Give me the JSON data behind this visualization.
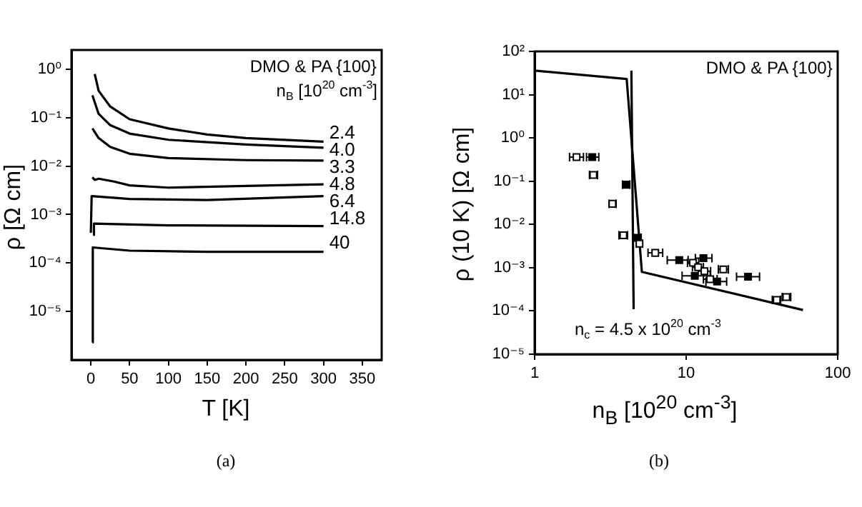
{
  "chart_data": [
    {
      "type": "line",
      "xlabel": "T [K]",
      "ylabel": "ρ [Ω cm]",
      "legend_title": "n$_{B}$ [10$^{20}$ cm$^{-3}$]",
      "annotations": [
        "DMO & PA {100}",
        "(a)"
      ],
      "log": "y",
      "xlim": [
        -25,
        375
      ],
      "xticks": [
        0,
        50,
        100,
        150,
        200,
        250,
        300,
        350
      ],
      "ylim": [
        1e-06,
        2.5
      ],
      "yticks": [
        {
          "value": 1,
          "label": "10⁰"
        },
        {
          "value": 0.1,
          "label": "10⁻¹"
        },
        {
          "value": 0.01,
          "label": "10⁻²"
        },
        {
          "value": 0.001,
          "label": "10⁻³"
        },
        {
          "value": 0.0001,
          "label": "10⁻⁴"
        },
        {
          "value": 1e-05,
          "label": "10⁻⁵"
        }
      ],
      "series": [
        {
          "name": "2.4",
          "color": "#000000",
          "x": [
            5,
            10,
            25,
            50,
            100,
            150,
            200,
            300
          ],
          "values": [
            0.8,
            0.36,
            0.17,
            0.093,
            0.06,
            0.045,
            0.038,
            0.032
          ]
        },
        {
          "name": "4.0",
          "color": "#000000",
          "x": [
            2,
            10,
            25,
            50,
            100,
            200,
            300
          ],
          "values": [
            0.29,
            0.12,
            0.07,
            0.047,
            0.035,
            0.028,
            0.024
          ]
        },
        {
          "name": "3.3",
          "color": "#000000",
          "x": [
            2,
            10,
            25,
            50,
            100,
            200,
            300
          ],
          "values": [
            0.06,
            0.038,
            0.025,
            0.018,
            0.0147,
            0.0133,
            0.013
          ]
        },
        {
          "name": "4.8",
          "color": "#000000",
          "x": [
            2,
            5,
            10,
            30,
            50,
            100,
            200,
            300
          ],
          "values": [
            0.0059,
            0.0052,
            0.0055,
            0.0048,
            0.004,
            0.0036,
            0.0039,
            0.0042
          ]
        },
        {
          "name": "6.4",
          "color": "#000000",
          "x": [
            0,
            1,
            50,
            150,
            300
          ],
          "values": [
            0.00042,
            0.0024,
            0.0021,
            0.002,
            0.0024
          ]
        },
        {
          "name": "14.8",
          "color": "#000000",
          "x": [
            3,
            4,
            100,
            300
          ],
          "values": [
            0.00038,
            0.00065,
            0.0006,
            0.00058
          ]
        },
        {
          "name": "40",
          "color": "#000000",
          "x": [
            2,
            2.5,
            50,
            150,
            300
          ],
          "values": [
            2.3e-06,
            0.00021,
            0.00018,
            0.00017,
            0.00017
          ]
        }
      ]
    },
    {
      "type": "scatter",
      "xlabel": "n$_{B}$ [10$^{20}$ cm$^{-3}$]",
      "ylabel": "ρ (10 K) [Ω cm]",
      "annotations": [
        "DMO & PA {100}",
        "n$_{c}$ = 4.5 x 10$^{20}$ cm$^{-3}$",
        "(b)"
      ],
      "log": "xy",
      "xlim": [
        1,
        100
      ],
      "xticks": [
        1,
        10,
        100
      ],
      "ylim": [
        1e-05,
        100
      ],
      "yticks": [
        {
          "value": 100,
          "label": "10²"
        },
        {
          "value": 10,
          "label": "10¹"
        },
        {
          "value": 1,
          "label": "10⁰"
        },
        {
          "value": 0.1,
          "label": "10⁻¹"
        },
        {
          "value": 0.01,
          "label": "10⁻²"
        },
        {
          "value": 0.001,
          "label": "10⁻³"
        },
        {
          "value": 0.0001,
          "label": "10⁻⁴"
        },
        {
          "value": 1e-05,
          "label": "10⁻⁵"
        }
      ],
      "series": [
        {
          "marker": "square",
          "color": "#ffffff",
          "x": [
            1.89,
            2.44,
            3.26,
            3.85,
            4.92,
            6.25,
            11.1,
            12.0,
            13.2,
            14.4,
            17.6,
            39.6,
            45.8
          ],
          "values": [
            0.36,
            0.139,
            0.03,
            0.0056,
            0.0036,
            0.0022,
            0.0013,
            0.00102,
            0.00083,
            0.00054,
            0.00091,
            0.00018,
            0.00021
          ],
          "xerrors": [
            [
              1.7,
              2.1
            ],
            [
              2.3,
              2.6
            ],
            [
              3.1,
              3.45
            ],
            [
              3.6,
              4.1
            ],
            [
              4.7,
              5.15
            ],
            [
              5.6,
              7.0
            ],
            [
              10.2,
              12.1
            ],
            [
              11,
              13
            ],
            [
              12,
              14.5
            ],
            [
              13,
              16
            ],
            [
              16.3,
              19
            ],
            [
              37,
              42
            ],
            [
              43,
              49
            ]
          ]
        },
        {
          "marker": "square",
          "color": "#000000",
          "x": [
            2.4,
            4.0,
            4.77,
            9,
            13,
            11.4,
            16,
            25.6
          ],
          "values": [
            0.36,
            0.083,
            0.0049,
            0.0015,
            0.00166,
            0.00065,
            0.00048,
            0.00062
          ],
          "xerrors": [
            [
              2.2,
              2.65
            ],
            [
              3.8,
              4.25
            ],
            [
              4.5,
              5.05
            ],
            [
              7.5,
              10.3
            ],
            [
              11.5,
              14.8
            ],
            [
              9.4,
              14.4
            ],
            [
              13.5,
              18.5
            ],
            [
              21.5,
              30.5
            ]
          ]
        },
        {
          "type": "line",
          "color": "#000000",
          "x": [
            1,
            4.05,
            5.1,
            59
          ],
          "values": [
            36,
            23,
            0.0008,
            0.000105
          ]
        },
        {
          "type": "line",
          "color": "#000000",
          "x": [
            4.35,
            4.5
          ],
          "values": [
            36,
            0.00011
          ]
        }
      ]
    }
  ]
}
